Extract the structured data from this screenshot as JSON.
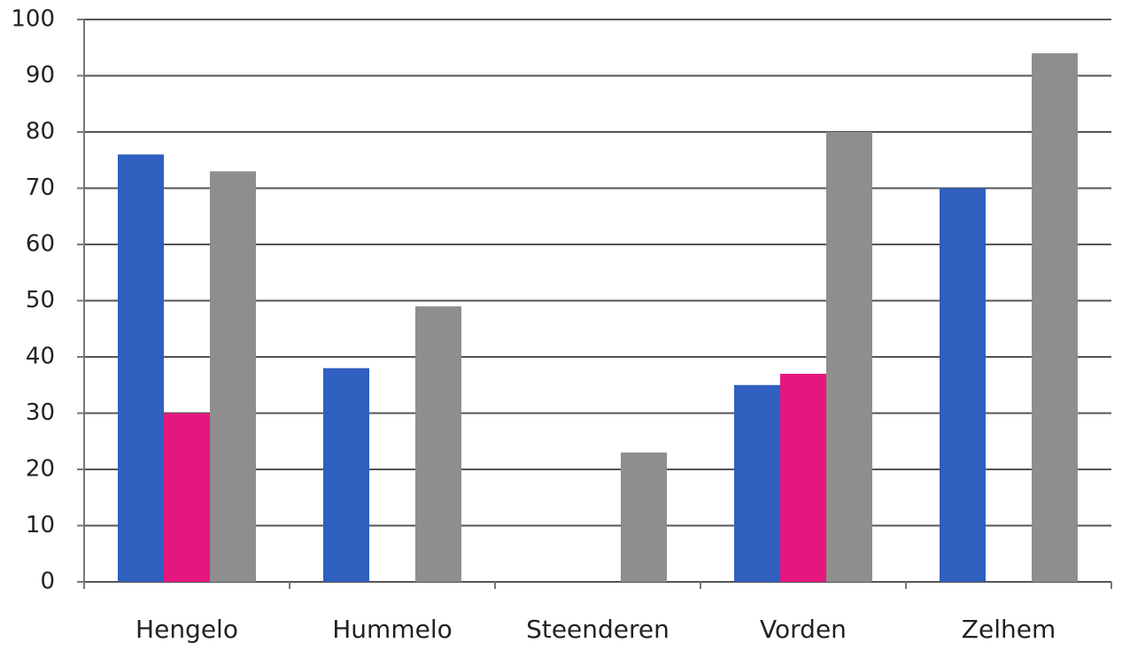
{
  "chart_data": {
    "type": "bar",
    "categories": [
      "Hengelo",
      "Hummelo",
      "Steenderen",
      "Vorden",
      "Zelhem"
    ],
    "series": [
      {
        "color": "#2f5fbf",
        "values": [
          76,
          38,
          null,
          35,
          70
        ]
      },
      {
        "color": "#e5177f",
        "values": [
          30,
          null,
          null,
          37,
          null
        ]
      },
      {
        "color": "#8e8e8e",
        "values": [
          73,
          49,
          23,
          80,
          94
        ]
      }
    ],
    "ylim": [
      0,
      100
    ],
    "yticks": [
      0,
      10,
      20,
      30,
      40,
      50,
      60,
      70,
      80,
      90,
      100
    ],
    "grid": true
  }
}
